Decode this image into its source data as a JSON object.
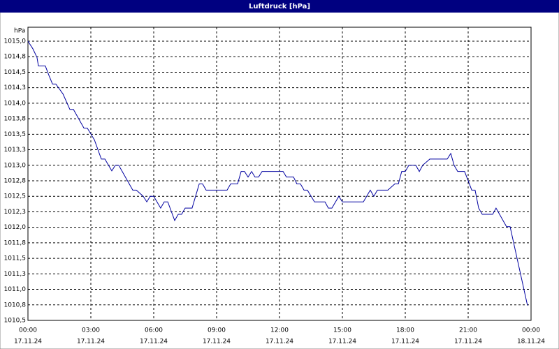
{
  "chart_data": {
    "type": "line",
    "title": "Luftdruck [hPa]",
    "y_unit": "hPa",
    "x": [
      0,
      0.23,
      0.43,
      0.5,
      0.83,
      1,
      1.17,
      1.33,
      1.67,
      2,
      2.17,
      2.67,
      2.83,
      3.17,
      3.5,
      3.67,
      4,
      4.17,
      4.33,
      5,
      5.17,
      5.5,
      5.67,
      5.83,
      6,
      6.33,
      6.5,
      6.67,
      7,
      7.17,
      7.33,
      7.5,
      7.83,
      8.17,
      8.33,
      8.5,
      9.5,
      9.67,
      10,
      10.17,
      10.33,
      10.5,
      10.67,
      10.83,
      11,
      11.17,
      12.17,
      12.33,
      12.67,
      12.83,
      13,
      13.17,
      13.33,
      13.67,
      14.17,
      14.33,
      14.5,
      14.83,
      15,
      15.17,
      16,
      16.33,
      16.5,
      16.67,
      17.17,
      17.5,
      17.67,
      17.83,
      18,
      18.17,
      18.5,
      18.67,
      18.83,
      19.17,
      20,
      20.17,
      20.33,
      20.5,
      20.83,
      21.17,
      21.33,
      21.5,
      21.67,
      22.17,
      22.33,
      22.83,
      23,
      23.83
    ],
    "series": [
      {
        "name": "Luftdruck",
        "color": "#0000a0",
        "values": [
          1015.0,
          1014.88,
          1014.74,
          1014.6,
          1014.6,
          1014.45,
          1014.31,
          1014.31,
          1014.15,
          1013.9,
          1013.9,
          1013.6,
          1013.6,
          1013.41,
          1013.1,
          1013.1,
          1012.91,
          1013.0,
          1013.0,
          1012.6,
          1012.6,
          1012.5,
          1012.41,
          1012.5,
          1012.5,
          1012.31,
          1012.41,
          1012.41,
          1012.11,
          1012.21,
          1012.21,
          1012.31,
          1012.31,
          1012.7,
          1012.7,
          1012.6,
          1012.6,
          1012.7,
          1012.7,
          1012.9,
          1012.9,
          1012.81,
          1012.9,
          1012.81,
          1012.81,
          1012.9,
          1012.9,
          1012.81,
          1012.81,
          1012.7,
          1012.7,
          1012.6,
          1012.6,
          1012.41,
          1012.41,
          1012.31,
          1012.31,
          1012.5,
          1012.41,
          1012.41,
          1012.41,
          1012.6,
          1012.5,
          1012.6,
          1012.6,
          1012.7,
          1012.7,
          1012.9,
          1012.9,
          1013.0,
          1013.0,
          1012.9,
          1013.0,
          1013.1,
          1013.1,
          1013.19,
          1013.0,
          1012.9,
          1012.9,
          1012.6,
          1012.6,
          1012.31,
          1012.21,
          1012.21,
          1012.31,
          1012.01,
          1012.01,
          1010.74
        ]
      }
    ],
    "xlim": [
      0,
      24
    ],
    "xticks": [
      {
        "value": 0,
        "label": "00:00"
      },
      {
        "value": 3,
        "label": "03:00"
      },
      {
        "value": 6,
        "label": "06:00"
      },
      {
        "value": 9,
        "label": "09:00"
      },
      {
        "value": 12,
        "label": "12:00"
      },
      {
        "value": 15,
        "label": "15:00"
      },
      {
        "value": 18,
        "label": "18:00"
      },
      {
        "value": 21,
        "label": "21:00"
      },
      {
        "value": 24,
        "label": "00:00"
      }
    ],
    "xtick_dates": [
      "17.11.24",
      "17.11.24",
      "17.11.24",
      "17.11.24",
      "17.11.24",
      "17.11.24",
      "17.11.24",
      "17.11.24",
      "18.11.24"
    ],
    "ylim": [
      1010.5,
      1015
    ],
    "yticks": [
      {
        "value": 1010.5,
        "label": "1010,5"
      },
      {
        "value": 1010.75,
        "label": "1010,8"
      },
      {
        "value": 1011,
        "label": "1011,0"
      },
      {
        "value": 1011.25,
        "label": "1011,3"
      },
      {
        "value": 1011.5,
        "label": "1011,5"
      },
      {
        "value": 1011.75,
        "label": "1011,8"
      },
      {
        "value": 1012,
        "label": "1012,0"
      },
      {
        "value": 1012.25,
        "label": "1012,3"
      },
      {
        "value": 1012.5,
        "label": "1012,5"
      },
      {
        "value": 1012.75,
        "label": "1012,8"
      },
      {
        "value": 1013,
        "label": "1013,0"
      },
      {
        "value": 1013.25,
        "label": "1013,3"
      },
      {
        "value": 1013.5,
        "label": "1013,5"
      },
      {
        "value": 1013.75,
        "label": "1013,8"
      },
      {
        "value": 1014,
        "label": "1014,0"
      },
      {
        "value": 1014.25,
        "label": "1014,3"
      },
      {
        "value": 1014.5,
        "label": "1014,5"
      },
      {
        "value": 1014.75,
        "label": "1014,8"
      },
      {
        "value": 1015,
        "label": "1015,0"
      }
    ],
    "grid": true
  }
}
